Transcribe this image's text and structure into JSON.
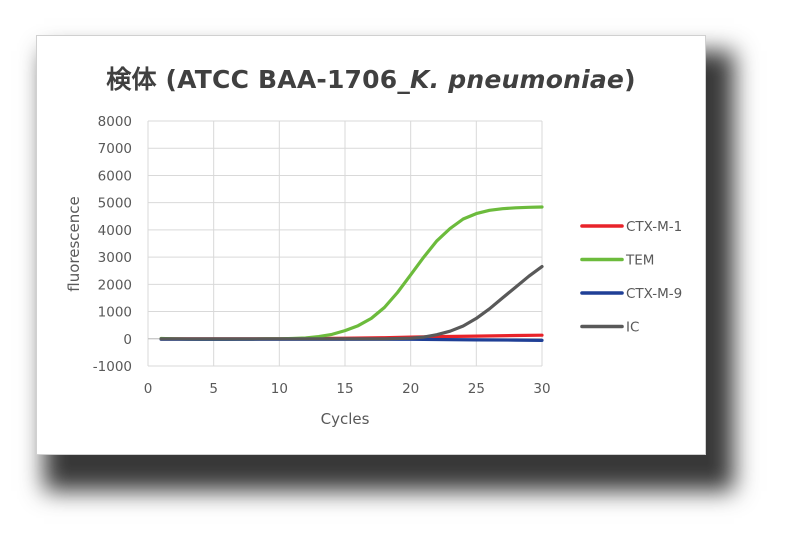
{
  "chart_data": {
    "type": "line",
    "title": {
      "prefix": "検体 (ATCC BAA-1706_",
      "italic": "K. pneumoniae",
      "suffix": ")"
    },
    "xlabel": "Cycles",
    "ylabel": "fluorescence",
    "xlim": [
      0,
      30
    ],
    "ylim": [
      -1000,
      8000
    ],
    "xticks": [
      0,
      5,
      10,
      15,
      20,
      25,
      30
    ],
    "yticks": [
      -1000,
      0,
      1000,
      2000,
      3000,
      4000,
      5000,
      6000,
      7000,
      8000
    ],
    "grid": true,
    "legend_position": "right",
    "series": [
      {
        "name": "CTX-M-1",
        "color": "#e8232a",
        "x": [
          1,
          5,
          10,
          15,
          18,
          20,
          22,
          25,
          28,
          30
        ],
        "y": [
          0,
          0,
          0,
          20,
          40,
          60,
          80,
          100,
          120,
          130
        ]
      },
      {
        "name": "TEM",
        "color": "#6cbb3c",
        "x": [
          1,
          2,
          3,
          4,
          5,
          6,
          7,
          8,
          9,
          10,
          11,
          12,
          13,
          14,
          15,
          16,
          17,
          18,
          19,
          20,
          21,
          22,
          23,
          24,
          25,
          26,
          27,
          28,
          29,
          30
        ],
        "y": [
          10,
          0,
          -10,
          -20,
          -20,
          -20,
          -10,
          -10,
          0,
          0,
          10,
          30,
          80,
          160,
          300,
          480,
          750,
          1150,
          1700,
          2350,
          3000,
          3600,
          4050,
          4400,
          4600,
          4720,
          4780,
          4810,
          4830,
          4840
        ]
      },
      {
        "name": "CTX-M-9",
        "color": "#1f3f96",
        "x": [
          1,
          5,
          10,
          15,
          20,
          25,
          28,
          30
        ],
        "y": [
          -20,
          -20,
          -20,
          -20,
          -20,
          -40,
          -50,
          -60
        ]
      },
      {
        "name": "IC",
        "color": "#595959",
        "x": [
          1,
          5,
          10,
          15,
          18,
          20,
          21,
          22,
          23,
          24,
          25,
          26,
          27,
          28,
          29,
          30
        ],
        "y": [
          0,
          0,
          0,
          0,
          0,
          20,
          60,
          150,
          280,
          470,
          750,
          1100,
          1500,
          1900,
          2300,
          2650
        ]
      }
    ]
  }
}
